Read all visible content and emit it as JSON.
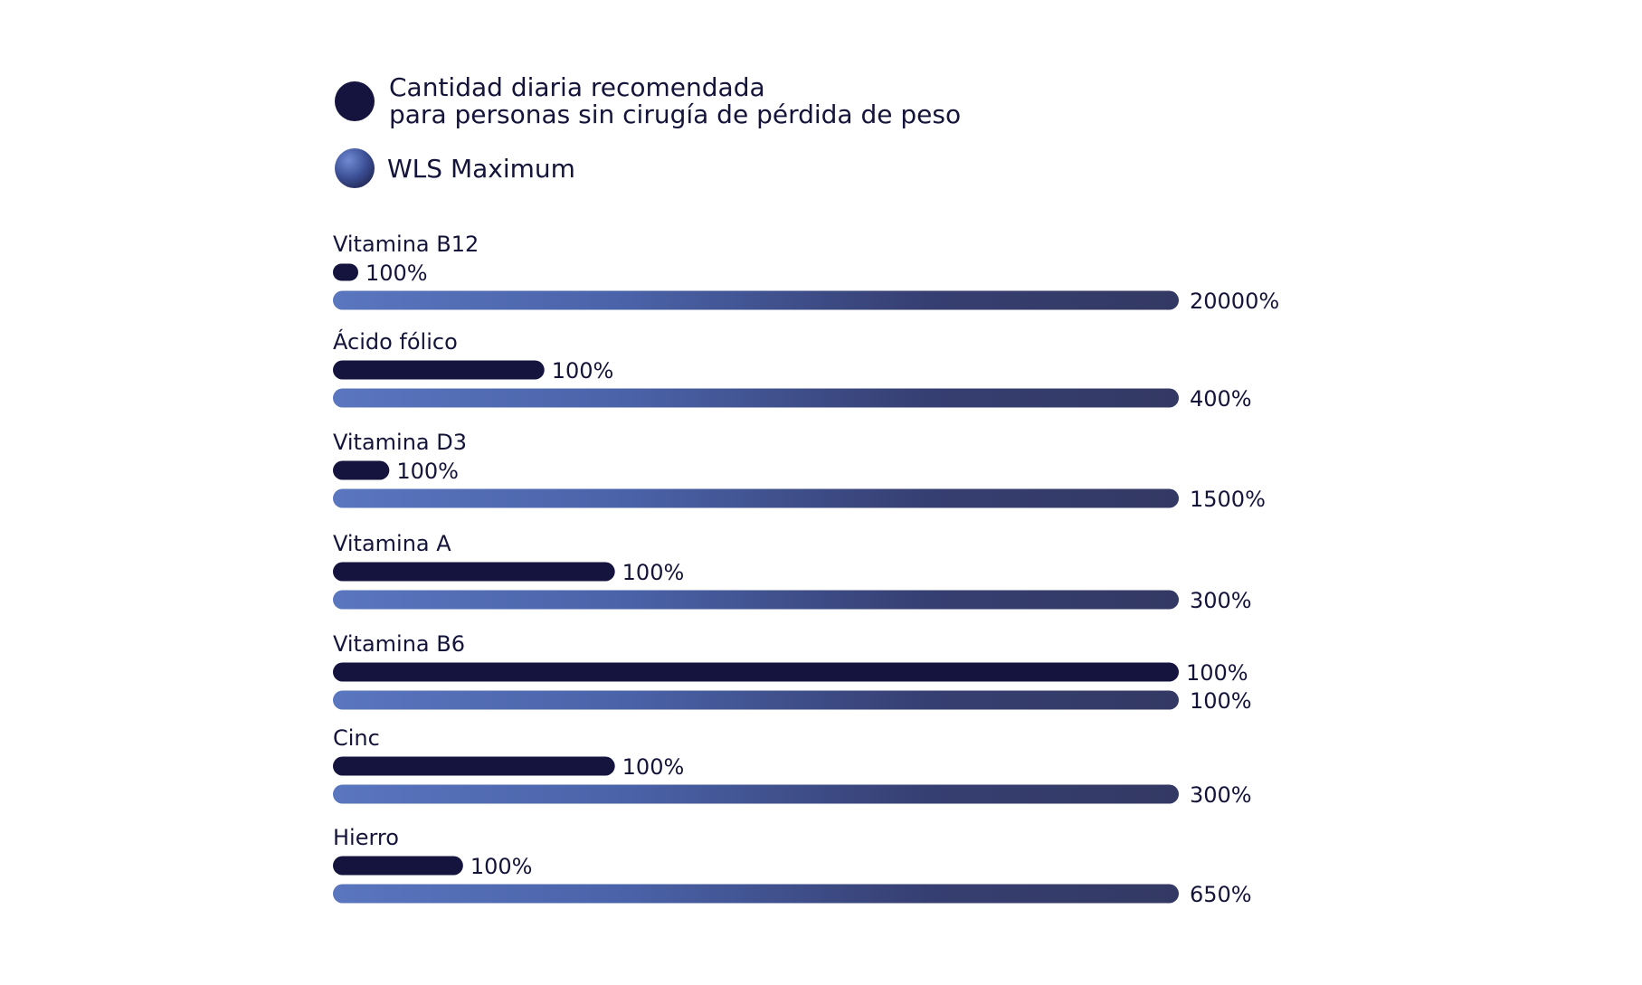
{
  "colors": {
    "recommended": "#14143f",
    "wls_start": "#5a76bf",
    "wls_end": "#333963",
    "text": "#14143a"
  },
  "legend": {
    "recommended_line1": "Cantidad diaria recomendada",
    "recommended_line2": "para personas sin cirugía de pérdida de peso",
    "wls": "WLS Maximum"
  },
  "chart_data": {
    "type": "bar",
    "orientation": "horizontal",
    "categories": [
      "Vitamina B12",
      "Ácido fólico",
      "Vitamina D3",
      "Vitamina A",
      "Vitamina B6",
      "Cinc",
      "Hierro"
    ],
    "series": [
      {
        "name": "Cantidad diaria recomendada para personas sin cirugía de pérdida de peso",
        "values": [
          100,
          100,
          100,
          100,
          100,
          100,
          100
        ],
        "labels": [
          "100%",
          "100%",
          "100%",
          "100%",
          "100%",
          "100%",
          "100%"
        ]
      },
      {
        "name": "WLS Maximum",
        "values": [
          20000,
          400,
          1500,
          300,
          100,
          300,
          650
        ],
        "labels": [
          "20000%",
          "400%",
          "1500%",
          "300%",
          "100%",
          "300%",
          "650%"
        ]
      }
    ],
    "scale": "each category is scaled so that its WLS Maximum bar spans the full width"
  }
}
